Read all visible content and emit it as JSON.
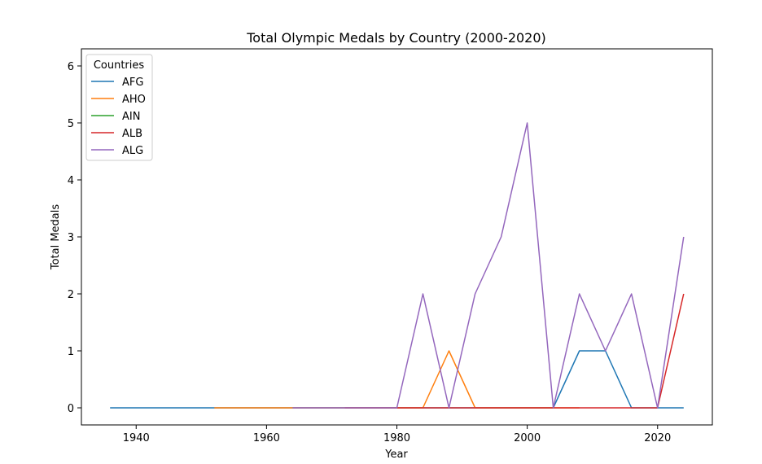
{
  "chart_data": {
    "type": "line",
    "title": "Total Olympic Medals by Country (2000-2020)",
    "xlabel": "Year",
    "ylabel": "Total Medals",
    "xlim": [
      1931.6,
      2028.4
    ],
    "ylim": [
      -0.3,
      6.3
    ],
    "xticks": [
      1940,
      1960,
      1980,
      2000,
      2020
    ],
    "yticks": [
      0,
      1,
      2,
      3,
      4,
      5,
      6
    ],
    "grid": false,
    "legend": {
      "title": "Countries",
      "placement": "top-left"
    },
    "series": [
      {
        "name": "AFG",
        "color": "#1f77b4",
        "x": [
          1936,
          1948,
          1956,
          1960,
          1964,
          1968,
          1972,
          1980,
          1988,
          1996,
          2004,
          2008,
          2012,
          2016,
          2020,
          2024
        ],
        "y": [
          0,
          0,
          0,
          0,
          0,
          0,
          0,
          0,
          0,
          0,
          0,
          1,
          1,
          0,
          0,
          0
        ]
      },
      {
        "name": "AHO",
        "color": "#ff7f0e",
        "x": [
          1952,
          1960,
          1964,
          1968,
          1972,
          1976,
          1984,
          1988,
          1992,
          1996,
          2000,
          2004,
          2008
        ],
        "y": [
          0,
          0,
          0,
          0,
          0,
          0,
          0,
          1,
          0,
          0,
          0,
          0,
          0
        ]
      },
      {
        "name": "AIN",
        "color": "#2ca02c",
        "x": [
          2024
        ],
        "y": [
          0
        ]
      },
      {
        "name": "ALB",
        "color": "#d62728",
        "x": [
          1972,
          1992,
          1996,
          2000,
          2004,
          2008,
          2012,
          2016,
          2020,
          2024
        ],
        "y": [
          0,
          0,
          0,
          0,
          0,
          0,
          0,
          0,
          0,
          2
        ]
      },
      {
        "name": "ALG",
        "color": "#9467bd",
        "x": [
          1964,
          1968,
          1972,
          1976,
          1980,
          1984,
          1988,
          1992,
          1996,
          2000,
          2004,
          2008,
          2012,
          2016,
          2020,
          2024
        ],
        "y": [
          0,
          0,
          0,
          0,
          0,
          2,
          0,
          2,
          3,
          5,
          0,
          2,
          1,
          2,
          0,
          3
        ]
      }
    ]
  }
}
